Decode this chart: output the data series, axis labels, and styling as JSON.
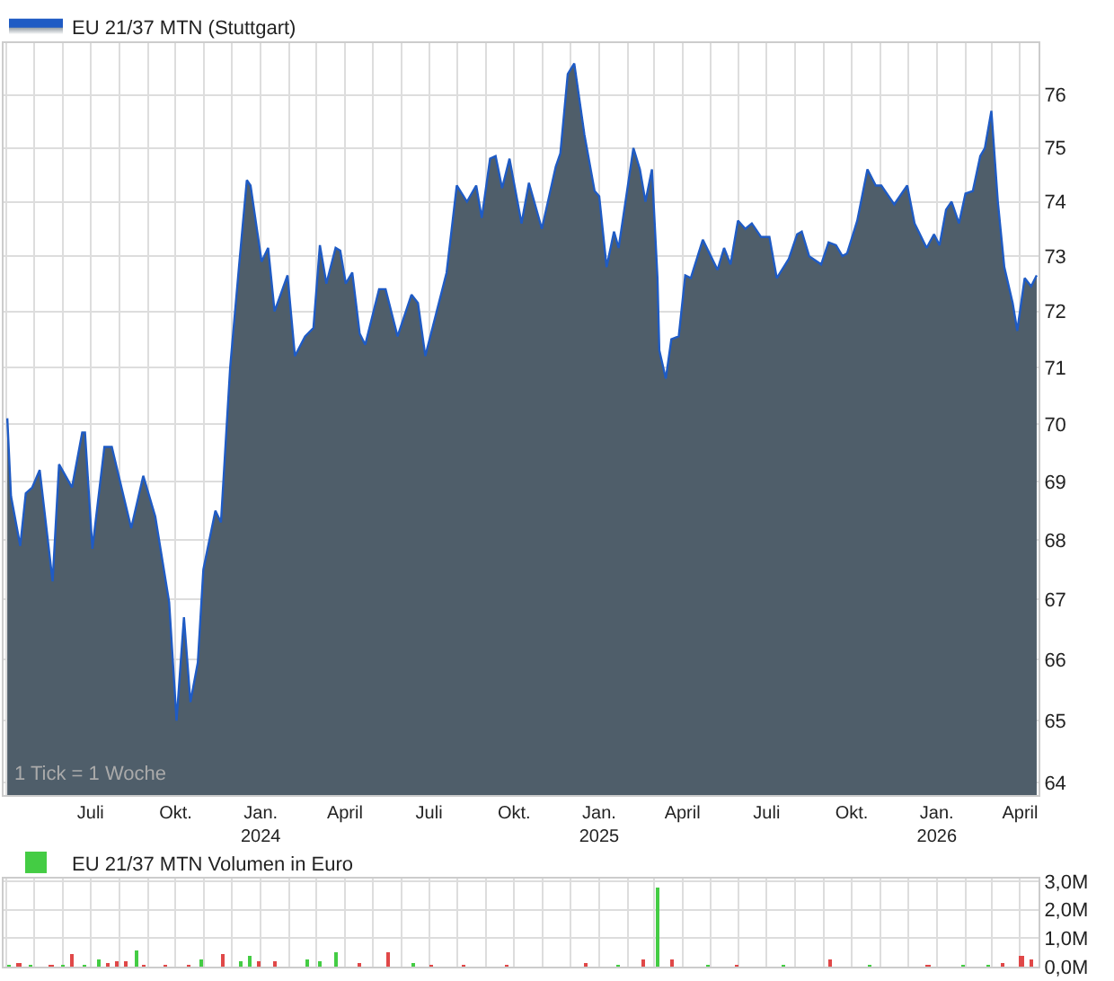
{
  "chart_data": [
    {
      "type": "area",
      "log": true,
      "grid": true,
      "legend": "top left",
      "annotations": [
        "1 Tick = 1 Woche"
      ],
      "xlim": [
        "2023-03-29",
        "2026-04-21"
      ],
      "xticks": [
        {
          "value": "2023-04-01",
          "label": null
        },
        {
          "value": "2023-05-01",
          "label": null
        },
        {
          "value": "2023-06-01",
          "label": null
        },
        {
          "value": "2023-07-01",
          "label": "Juli"
        },
        {
          "value": "2023-08-01",
          "label": null
        },
        {
          "value": "2023-09-01",
          "label": null
        },
        {
          "value": "2023-10-01",
          "label": "Okt."
        },
        {
          "value": "2023-11-01",
          "label": null
        },
        {
          "value": "2023-12-01",
          "label": null
        },
        {
          "value": "2024-01-01",
          "label": "Jan.\n2024"
        },
        {
          "value": "2024-02-01",
          "label": null
        },
        {
          "value": "2024-03-01",
          "label": null
        },
        {
          "value": "2024-04-01",
          "label": "April"
        },
        {
          "value": "2024-05-01",
          "label": null
        },
        {
          "value": "2024-06-01",
          "label": null
        },
        {
          "value": "2024-07-01",
          "label": "Juli"
        },
        {
          "value": "2024-08-01",
          "label": null
        },
        {
          "value": "2024-09-01",
          "label": null
        },
        {
          "value": "2024-10-01",
          "label": "Okt."
        },
        {
          "value": "2024-11-01",
          "label": null
        },
        {
          "value": "2024-12-01",
          "label": null
        },
        {
          "value": "2025-01-01",
          "label": "Jan.\n2025"
        },
        {
          "value": "2025-02-01",
          "label": null
        },
        {
          "value": "2025-03-01",
          "label": null
        },
        {
          "value": "2025-04-01",
          "label": "April"
        },
        {
          "value": "2025-05-01",
          "label": null
        },
        {
          "value": "2025-06-01",
          "label": null
        },
        {
          "value": "2025-07-01",
          "label": "Juli"
        },
        {
          "value": "2025-08-01",
          "label": null
        },
        {
          "value": "2025-09-01",
          "label": null
        },
        {
          "value": "2025-10-01",
          "label": "Okt."
        },
        {
          "value": "2025-11-01",
          "label": null
        },
        {
          "value": "2025-12-01",
          "label": null
        },
        {
          "value": "2026-01-01",
          "label": "Jan.\n2026"
        },
        {
          "value": "2026-02-01",
          "label": null
        },
        {
          "value": "2026-03-01",
          "label": null
        },
        {
          "value": "2026-04-01",
          "label": "April"
        }
      ],
      "ylim": [
        63.8,
        77.0
      ],
      "yticks": [
        64,
        65,
        66,
        67,
        68,
        69,
        70,
        71,
        72,
        73,
        74,
        75,
        76
      ],
      "x": [
        "2023-04-02",
        "2023-04-06",
        "2023-04-16",
        "2023-04-22",
        "2023-04-29",
        "2023-05-07",
        "2023-05-21",
        "2023-05-28",
        "2023-06-11",
        "2023-06-22",
        "2023-06-25",
        "2023-07-03",
        "2023-07-16",
        "2023-07-24",
        "2023-08-14",
        "2023-08-27",
        "2023-09-09",
        "2023-09-24",
        "2023-10-02",
        "2023-10-10",
        "2023-10-17",
        "2023-10-25",
        "2023-10-31",
        "2023-11-13",
        "2023-11-19",
        "2023-11-29",
        "2023-12-09",
        "2023-12-17",
        "2023-12-21",
        "2024-01-02",
        "2024-01-09",
        "2024-01-16",
        "2024-01-30",
        "2024-02-07",
        "2024-02-18",
        "2024-02-27",
        "2024-03-05",
        "2024-03-12",
        "2024-03-22",
        "2024-03-27",
        "2024-04-02",
        "2024-04-09",
        "2024-04-17",
        "2024-04-23",
        "2024-05-08",
        "2024-05-15",
        "2024-05-28",
        "2024-06-12",
        "2024-06-19",
        "2024-06-27",
        "2024-07-20",
        "2024-07-31",
        "2024-08-11",
        "2024-08-21",
        "2024-08-27",
        "2024-09-05",
        "2024-09-11",
        "2024-09-18",
        "2024-09-26",
        "2024-10-09",
        "2024-10-17",
        "2024-10-31",
        "2024-11-15",
        "2024-11-20",
        "2024-11-28",
        "2024-12-05",
        "2024-12-16",
        "2024-12-27",
        "2025-01-01",
        "2025-01-09",
        "2025-01-17",
        "2025-01-22",
        "2025-02-07",
        "2025-02-14",
        "2025-02-20",
        "2025-02-27",
        "2025-03-05",
        "2025-03-07",
        "2025-03-14",
        "2025-03-20",
        "2025-03-28",
        "2025-04-04",
        "2025-04-10",
        "2025-04-23",
        "2025-05-09",
        "2025-05-16",
        "2025-05-23",
        "2025-05-31",
        "2025-06-08",
        "2025-06-15",
        "2025-06-25",
        "2025-07-04",
        "2025-07-12",
        "2025-07-25",
        "2025-08-03",
        "2025-08-08",
        "2025-08-16",
        "2025-08-29",
        "2025-09-06",
        "2025-09-14",
        "2025-09-21",
        "2025-09-26",
        "2025-10-07",
        "2025-10-18",
        "2025-10-27",
        "2025-11-02",
        "2025-11-16",
        "2025-11-30",
        "2025-12-08",
        "2025-12-21",
        "2025-12-29",
        "2026-01-04",
        "2026-01-11",
        "2026-01-17",
        "2026-01-25",
        "2026-02-01",
        "2026-02-09",
        "2026-02-17",
        "2026-02-22",
        "2026-03-01",
        "2026-03-08",
        "2026-03-15",
        "2026-03-24",
        "2026-03-29",
        "2026-04-06",
        "2026-04-13",
        "2026-04-19"
      ],
      "series": [
        {
          "name": "EU 21/37 MTN (Stuttgart)",
          "color": "#1f5bc4",
          "values": [
            70.1,
            68.75,
            67.9,
            68.8,
            68.9,
            69.2,
            67.3,
            69.3,
            68.9,
            69.85,
            69.85,
            67.85,
            69.6,
            69.6,
            68.2,
            69.1,
            68.4,
            66.95,
            65.0,
            66.7,
            65.3,
            65.95,
            67.5,
            68.5,
            68.3,
            71.0,
            72.9,
            74.4,
            74.3,
            72.9,
            73.15,
            72.0,
            72.65,
            71.2,
            71.55,
            71.7,
            73.2,
            72.5,
            73.15,
            73.1,
            72.5,
            72.7,
            71.6,
            71.4,
            72.4,
            72.4,
            71.55,
            72.3,
            72.15,
            71.2,
            72.7,
            74.3,
            74.0,
            74.3,
            73.7,
            74.8,
            74.85,
            74.25,
            74.8,
            73.6,
            74.35,
            73.5,
            74.65,
            74.9,
            76.4,
            76.6,
            75.25,
            74.2,
            74.1,
            72.8,
            73.45,
            73.15,
            75.0,
            74.6,
            74.0,
            74.6,
            72.6,
            71.3,
            70.8,
            71.5,
            71.55,
            72.65,
            72.6,
            73.3,
            72.75,
            73.15,
            72.85,
            73.65,
            73.5,
            73.6,
            73.35,
            73.35,
            72.6,
            72.95,
            73.4,
            73.45,
            73.0,
            72.85,
            73.25,
            73.2,
            73.0,
            73.05,
            73.65,
            74.6,
            74.3,
            74.3,
            73.95,
            74.3,
            73.6,
            73.15,
            73.4,
            73.2,
            73.85,
            74.0,
            73.6,
            74.15,
            74.2,
            74.85,
            75.0,
            75.7,
            74.0,
            72.8,
            72.15,
            71.65,
            72.6,
            72.45,
            72.65
          ]
        }
      ]
    },
    {
      "type": "bar",
      "grid": true,
      "legend": "top left",
      "tick_labels": "y",
      "xlim": [
        "2023-03-29",
        "2026-04-21"
      ],
      "xticks": [
        {
          "value": "2023-04-01",
          "label": null
        },
        {
          "value": "2023-05-01",
          "label": null
        },
        {
          "value": "2023-06-01",
          "label": null
        },
        {
          "value": "2023-07-01",
          "label": null
        },
        {
          "value": "2023-08-01",
          "label": null
        },
        {
          "value": "2023-09-01",
          "label": null
        },
        {
          "value": "2023-10-01",
          "label": null
        },
        {
          "value": "2023-11-01",
          "label": null
        },
        {
          "value": "2023-12-01",
          "label": null
        },
        {
          "value": "2024-01-01",
          "label": null
        },
        {
          "value": "2024-02-01",
          "label": null
        },
        {
          "value": "2024-03-01",
          "label": null
        },
        {
          "value": "2024-04-01",
          "label": null
        },
        {
          "value": "2024-05-01",
          "label": null
        },
        {
          "value": "2024-06-01",
          "label": null
        },
        {
          "value": "2024-07-01",
          "label": null
        },
        {
          "value": "2024-08-01",
          "label": null
        },
        {
          "value": "2024-09-01",
          "label": null
        },
        {
          "value": "2024-10-01",
          "label": null
        },
        {
          "value": "2024-11-01",
          "label": null
        },
        {
          "value": "2024-12-01",
          "label": null
        },
        {
          "value": "2025-01-01",
          "label": null
        },
        {
          "value": "2025-02-01",
          "label": null
        },
        {
          "value": "2025-03-01",
          "label": null
        },
        {
          "value": "2025-04-01",
          "label": null
        },
        {
          "value": "2025-05-01",
          "label": null
        },
        {
          "value": "2025-06-01",
          "label": null
        },
        {
          "value": "2025-07-01",
          "label": null
        },
        {
          "value": "2025-08-01",
          "label": null
        },
        {
          "value": "2025-09-01",
          "label": null
        },
        {
          "value": "2025-10-01",
          "label": null
        },
        {
          "value": "2025-11-01",
          "label": null
        },
        {
          "value": "2025-12-01",
          "label": null
        },
        {
          "value": "2026-01-01",
          "label": null
        },
        {
          "value": "2026-02-01",
          "label": null
        },
        {
          "value": "2026-03-01",
          "label": null
        },
        {
          "value": "2026-04-01",
          "label": null
        }
      ],
      "ylim": [
        0,
        3.1
      ],
      "yticks": [
        {
          "value": 0,
          "label": "0,0M"
        },
        {
          "value": 1,
          "label": "1,0M"
        },
        {
          "value": 2,
          "label": "2,0M"
        },
        {
          "value": 3,
          "label": "3,0M"
        }
      ],
      "x": [
        "2023-04-05",
        "2023-04-15",
        "2023-04-28",
        "2023-05-20",
        "2023-06-02",
        "2023-06-11",
        "2023-06-25",
        "2023-07-10",
        "2023-07-20",
        "2023-07-29",
        "2023-08-08",
        "2023-08-20",
        "2023-08-28",
        "2023-09-20",
        "2023-10-15",
        "2023-10-30",
        "2023-11-21",
        "2023-12-11",
        "2023-12-21",
        "2023-12-30",
        "2024-01-16",
        "2024-02-21",
        "2024-03-05",
        "2024-03-22",
        "2024-04-18",
        "2024-05-18",
        "2024-06-14",
        "2024-07-04",
        "2024-08-08",
        "2024-09-23",
        "2024-12-18",
        "2025-01-22",
        "2025-02-18",
        "2025-03-06",
        "2025-03-21",
        "2025-04-29",
        "2025-05-31",
        "2025-07-19",
        "2025-09-08",
        "2025-10-20",
        "2025-12-23",
        "2026-01-29",
        "2026-02-27",
        "2026-03-14",
        "2026-04-03",
        "2026-04-14"
      ],
      "series": [
        {
          "name": "EU 21/37 MTN Volumen in Euro",
          "color": "#44cc44",
          "values": [
            0.1,
            0.15,
            0.1,
            0.1,
            0.1,
            0.45,
            0.1,
            0.25,
            0.15,
            0.2,
            0.2,
            0.6,
            0.1,
            0.1,
            0.1,
            0.25,
            0.45,
            0.2,
            0.4,
            0.2,
            0.2,
            0.25,
            0.2,
            0.55,
            0.15,
            0.5,
            0.15,
            0.1,
            0.1,
            0.1,
            0.15,
            0.1,
            0.3,
            2.8,
            0.25,
            0.1,
            0.1,
            0.1,
            0.25,
            0.1,
            0.1,
            0.1,
            0.1,
            0.15,
            0.4,
            0.3
          ],
          "colors": [
            "#44cc44",
            "#e04848",
            "#44cc44",
            "#e04848",
            "#44cc44",
            "#e04848",
            "#44cc44",
            "#44cc44",
            "#e04848",
            "#e04848",
            "#e04848",
            "#44cc44",
            "#e04848",
            "#e04848",
            "#e04848",
            "#44cc44",
            "#e04848",
            "#44cc44",
            "#44cc44",
            "#e04848",
            "#e04848",
            "#44cc44",
            "#44cc44",
            "#44cc44",
            "#e04848",
            "#e04848",
            "#44cc44",
            "#e04848",
            "#e04848",
            "#e04848",
            "#e04848",
            "#44cc44",
            "#e04848",
            "#44cc44",
            "#e04848",
            "#44cc44",
            "#e04848",
            "#44cc44",
            "#e04848",
            "#44cc44",
            "#e04848",
            "#44cc44",
            "#44cc44",
            "#e04848",
            "#e04848",
            "#e04848"
          ]
        }
      ]
    }
  ]
}
